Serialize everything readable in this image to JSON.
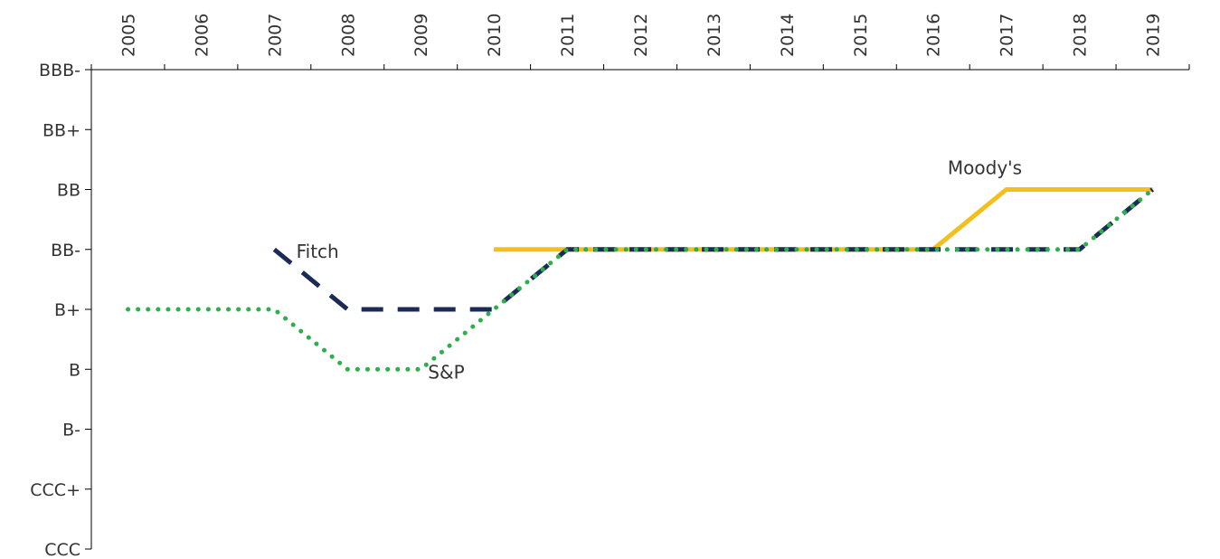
{
  "chart_data": {
    "type": "line",
    "x": [
      "2005",
      "2006",
      "2007",
      "2008",
      "2009",
      "2010",
      "2011",
      "2012",
      "2013",
      "2014",
      "2015",
      "2016",
      "2017",
      "2018",
      "2019"
    ],
    "y_categories": [
      "BBB-",
      "BB+",
      "BB",
      "BB-",
      "B+",
      "B",
      "B-",
      "CCC+",
      "CCC"
    ],
    "series": [
      {
        "name": "Moody's",
        "color": "#F4BE1B",
        "style": "solid",
        "values": [
          null,
          null,
          null,
          null,
          null,
          "BB-",
          "BB-",
          "BB-",
          "BB-",
          "BB-",
          "BB-",
          "BB-",
          "BB",
          "BB",
          "BB"
        ]
      },
      {
        "name": "Fitch",
        "color": "#1B2A57",
        "style": "dashed",
        "values": [
          null,
          null,
          "BB-",
          "B+",
          "B+",
          "B+",
          "BB-",
          "BB-",
          "BB-",
          "BB-",
          "BB-",
          "BB-",
          "BB-",
          "BB-",
          "BB"
        ]
      },
      {
        "name": "S&P",
        "color": "#2DB04C",
        "style": "dotted",
        "values": [
          "B+",
          "B+",
          "B+",
          "B",
          "B",
          "B+",
          "BB-",
          "BB-",
          "BB-",
          "BB-",
          "BB-",
          "BB-",
          "BB-",
          "BB-",
          "BB"
        ]
      }
    ],
    "title": "",
    "xlabel": "",
    "ylabel": "",
    "x_axis_position": "top",
    "grid": false,
    "legend": "none (series labeled directly on lines)"
  }
}
